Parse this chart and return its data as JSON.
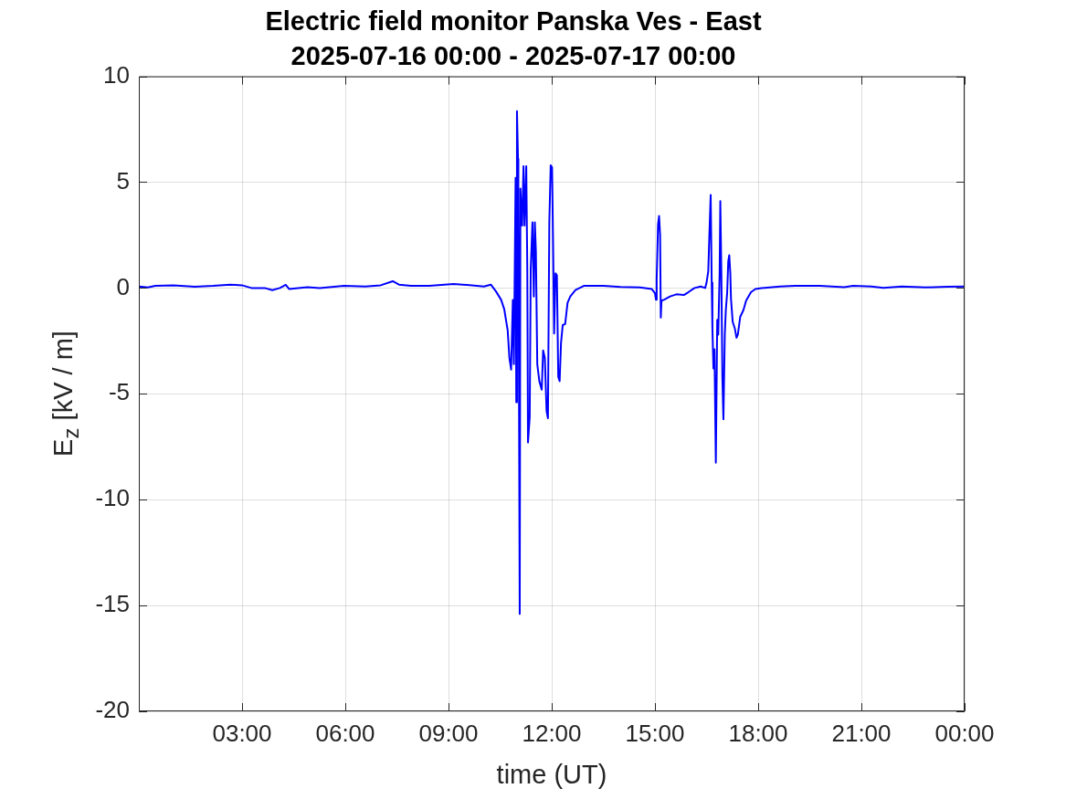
{
  "chart_data": {
    "type": "line",
    "title": "Electric field monitor Panska Ves - East",
    "subtitle": "2025-07-16 00:00 - 2025-07-17 00:00",
    "xlabel": "time (UT)",
    "ylabel": "E$_{z}$ [kV / m]",
    "color": "#0000ff",
    "marker": "none",
    "grid": true,
    "legend": false,
    "xlim": [
      0,
      24
    ],
    "xticks": [
      {
        "value": 3,
        "label": "03:00"
      },
      {
        "value": 6,
        "label": "06:00"
      },
      {
        "value": 9,
        "label": "09:00"
      },
      {
        "value": 12,
        "label": "12:00"
      },
      {
        "value": 15,
        "label": "15:00"
      },
      {
        "value": 18,
        "label": "18:00"
      },
      {
        "value": 21,
        "label": "21:00"
      },
      {
        "value": 24,
        "label": "00:00"
      }
    ],
    "ylim": [
      -20,
      10
    ],
    "yticks": [
      -20,
      -15,
      -10,
      -5,
      0,
      5,
      10
    ],
    "x": [
      0,
      0.26,
      0.48,
      1.01,
      1.63,
      2.16,
      2.65,
      3,
      3.27,
      3.66,
      3.88,
      4.1,
      4.27,
      4.37,
      4.9,
      5.26,
      5.96,
      6.58,
      7.03,
      7.38,
      7.56,
      7.91,
      8.44,
      9.15,
      9.68,
      10.03,
      10.23,
      10.38,
      10.53,
      10.62,
      10.72,
      10.77,
      10.82,
      10.87,
      10.9,
      10.95,
      10.97,
      10.99,
      11.02,
      11.03,
      11.05,
      11.07,
      11.09,
      11.14,
      11.18,
      11.21,
      11.26,
      11.29,
      11.31,
      11.36,
      11.39,
      11.44,
      11.48,
      11.51,
      11.54,
      11.58,
      11.64,
      11.71,
      11.75,
      11.8,
      11.85,
      11.89,
      11.93,
      11.97,
      12.01,
      12.04,
      12.07,
      12.11,
      12.15,
      12.19,
      12.23,
      12.27,
      12.32,
      12.39,
      12.46,
      12.54,
      12.69,
      12.93,
      13.5,
      14,
      14.56,
      14.91,
      15,
      15.03,
      15.05,
      15.09,
      15.12,
      15.15,
      15.17,
      15.19,
      15.27,
      15.44,
      15.62,
      15.84,
      15.97,
      16.15,
      16.33,
      16.46,
      16.5,
      16.55,
      16.58,
      16.62,
      16.65,
      16.67,
      16.7,
      16.73,
      16.77,
      16.81,
      16.84,
      16.88,
      16.9,
      16.93,
      16.96,
      16.99,
      17.03,
      17.06,
      17.1,
      17.13,
      17.16,
      17.19,
      17.21,
      17.26,
      17.32,
      17.37,
      17.41,
      17.48,
      17.57,
      17.65,
      17.79,
      17.92,
      18.1,
      18.19,
      18.64,
      19.08,
      19.79,
      20.5,
      20.76,
      21.29,
      21.64,
      22.18,
      22.88,
      23.5,
      24
    ],
    "values": [
      0.07,
      0.03,
      0.1,
      0.12,
      0.06,
      0.1,
      0.16,
      0.13,
      0,
      0,
      -0.1,
      0,
      0.15,
      -0.05,
      0.04,
      0,
      0.1,
      0.07,
      0.13,
      0.32,
      0.16,
      0.1,
      0.1,
      0.19,
      0.13,
      0.07,
      0.16,
      -0.16,
      -0.56,
      -1,
      -2,
      -3.3,
      -3.85,
      -0.56,
      -3.6,
      5.2,
      -5.4,
      8.35,
      6.1,
      4.55,
      -5.4,
      -15.4,
      4.7,
      2.95,
      5.75,
      2.95,
      5.75,
      0.9,
      -7.3,
      -6.1,
      0.9,
      3.1,
      -0.4,
      3.1,
      1.7,
      -3.6,
      -4.4,
      -4.8,
      -2.95,
      -3.3,
      -5.8,
      -6.15,
      3.1,
      5.8,
      5.7,
      2,
      -2.15,
      0.7,
      0.6,
      -4.2,
      -4.4,
      -2.6,
      -1.75,
      -1.7,
      -0.7,
      -0.4,
      -0.1,
      0.1,
      0.1,
      0.05,
      0.03,
      -0.05,
      -0.25,
      -0.55,
      0.4,
      3,
      3.4,
      2.5,
      -1.4,
      -0.6,
      -0.55,
      -0.4,
      -0.3,
      -0.33,
      -0.2,
      0,
      0.07,
      0,
      0.25,
      0.8,
      2.4,
      4.4,
      0.25,
      -1.9,
      -3.8,
      -2.9,
      -8.25,
      -1.5,
      -2.2,
      0.7,
      4.1,
      0.7,
      -4.2,
      -6.2,
      -2.2,
      -1.05,
      -0.2,
      1.25,
      1.55,
      0.7,
      -0.5,
      -1.6,
      -1.9,
      -2.35,
      -2.2,
      -1.35,
      -1.05,
      -0.6,
      -0.2,
      -0.05,
      0,
      0.01,
      0.07,
      0.1,
      0.1,
      0.04,
      0.1,
      0.07,
      0.01,
      0.07,
      0.03,
      0.06,
      0.07
    ]
  }
}
